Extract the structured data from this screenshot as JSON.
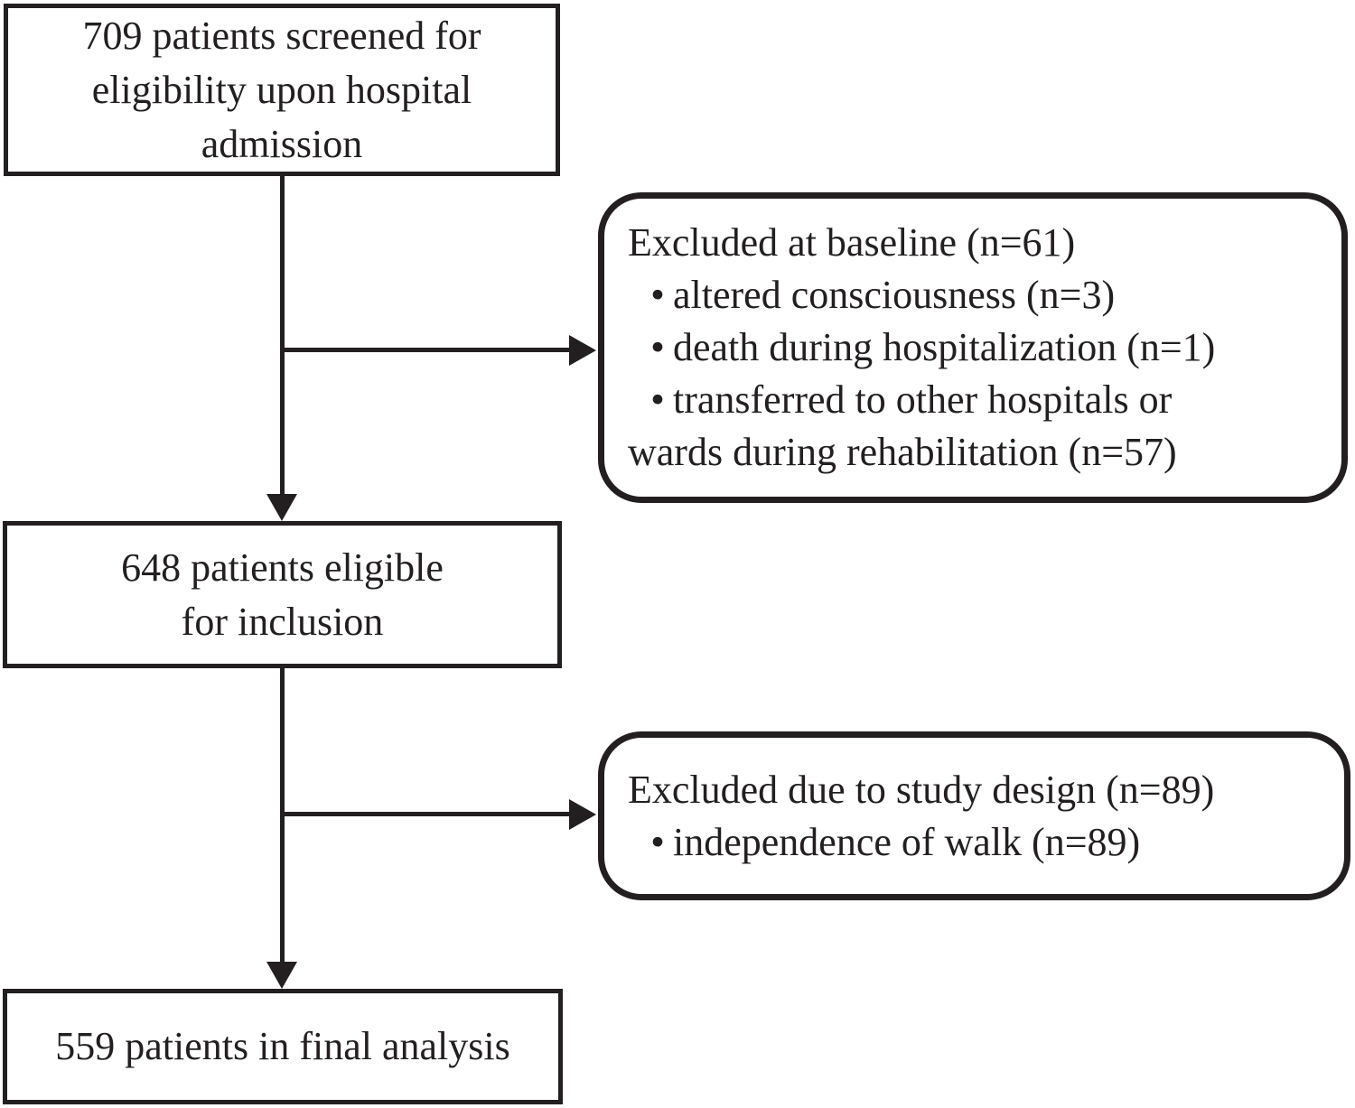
{
  "diagram": {
    "type": "patient-flowchart",
    "colors": {
      "ink": "#231f20",
      "background": "#ffffff"
    },
    "glyphs": {
      "bullet": "·"
    },
    "boxes": {
      "screened": {
        "lines": [
          "709 patients screened for",
          "eligibility upon hospital",
          "admission"
        ]
      },
      "eligible": {
        "lines": [
          "648 patients eligible",
          "for inclusion"
        ]
      },
      "final": {
        "lines": [
          "559 patients in final analysis"
        ]
      },
      "excluded_baseline": {
        "title": "Excluded at baseline (n=61)",
        "items": [
          "altered consciousness (n=3)",
          "death during hospitalization (n=1)",
          "transferred to other hospitals or"
        ],
        "item_continuation": "wards during rehabilitation (n=57)"
      },
      "excluded_design": {
        "title": "Excluded due to study design (n=89)",
        "items": [
          "independence of walk (n=89)"
        ]
      }
    }
  }
}
